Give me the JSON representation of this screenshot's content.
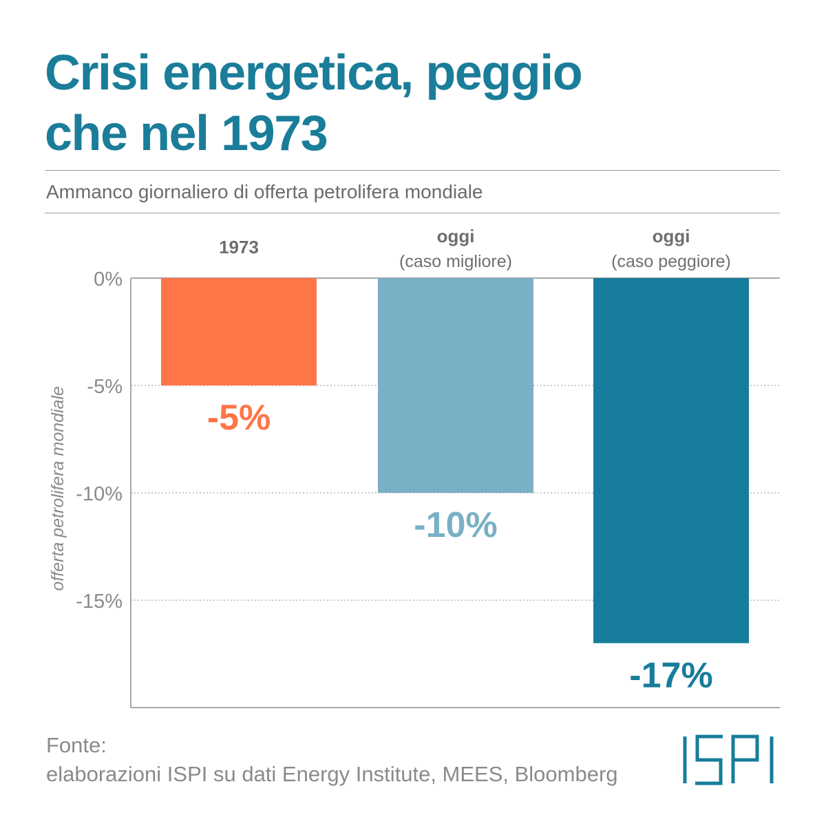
{
  "title_line1": "Crisi energetica, peggio",
  "title_line2": "che nel 1973",
  "subtitle": "Ammanco giornaliero di offerta petrolifera mondiale",
  "source_label": "Fonte:",
  "source_text": "elaborazioni ISPI su dati Energy Institute, MEES, Bloomberg",
  "logo_text": "ISPI",
  "colors": {
    "title": "#1a7d99",
    "bar_1973": "#ff7548",
    "bar_best": "#79b0c5",
    "bar_worst": "#177d9c",
    "axis_text": "#8a8a8a"
  },
  "chart_data": {
    "type": "bar",
    "ylabel": "offerta petrolifera mondiale",
    "ylim": [
      -20,
      0
    ],
    "yticks": [
      0,
      -5,
      -10,
      -15
    ],
    "ytick_labels": [
      "0%",
      "-5%",
      "-10%",
      "-15%"
    ],
    "grid": true,
    "categories": [
      {
        "label": "1973",
        "sublabel": ""
      },
      {
        "label": "oggi",
        "sublabel": "(caso migliore)"
      },
      {
        "label": "oggi",
        "sublabel": "(caso peggiore)"
      }
    ],
    "values": [
      -5,
      -10,
      -17
    ],
    "value_labels": [
      "-5%",
      "-10%",
      "-17%"
    ],
    "bar_colors": [
      "#ff7548",
      "#79b0c5",
      "#177d9c"
    ]
  }
}
